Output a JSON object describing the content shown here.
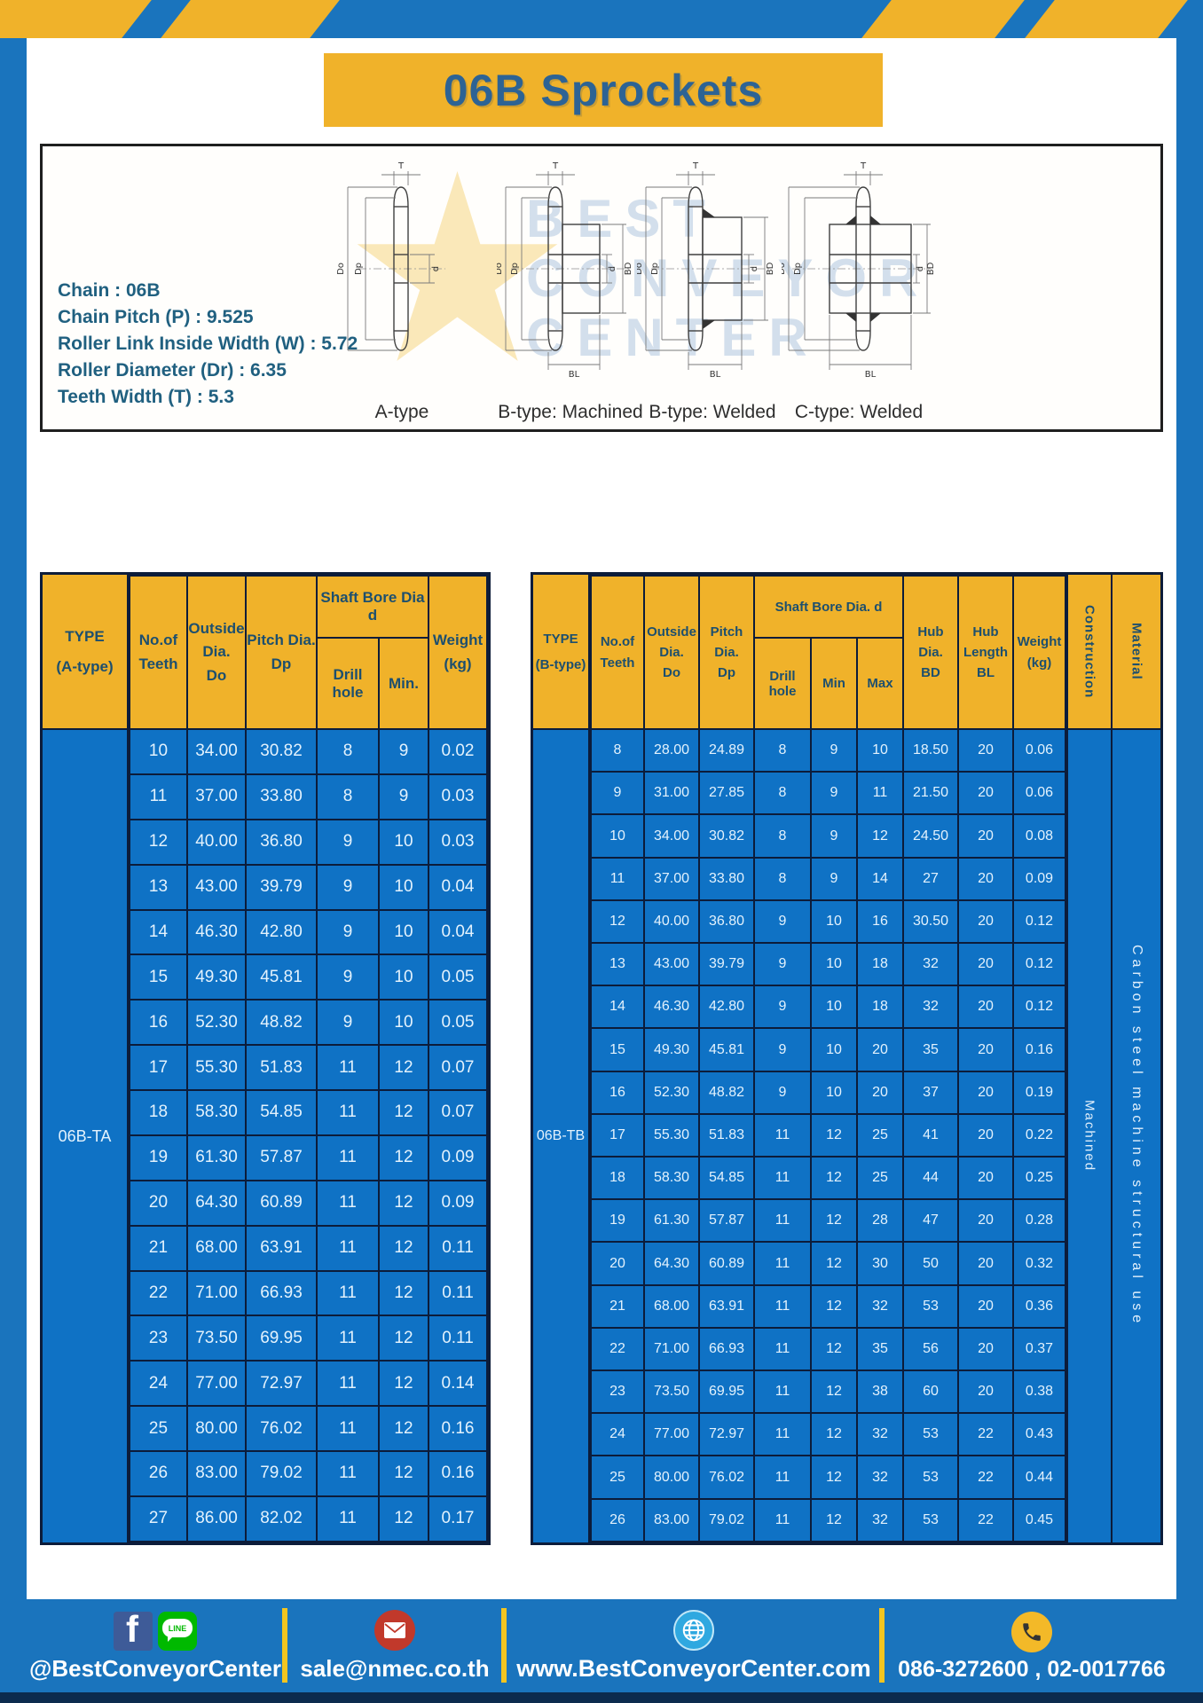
{
  "page": {
    "title": "06B Sprockets"
  },
  "specs": {
    "lines": [
      "Chain : 06B",
      "Chain Pitch (P) : 9.525",
      "Roller Link Inside Width (W) : 5.72",
      "Roller Diameter (Dr) : 6.35",
      "Teeth Width (T) : 5.3"
    ]
  },
  "diagram": {
    "watermark": "BEST CONVEYOR CENTER",
    "captions": [
      "A-type",
      "B-type: Machined",
      "B-type: Welded",
      "C-type: Welded"
    ],
    "dims": {
      "t": "T",
      "do": "Do",
      "dp": "Dp",
      "d": "d",
      "bd": "BD",
      "bl": "BL"
    }
  },
  "table_a": {
    "type_header": [
      "TYPE",
      "(A-type)"
    ],
    "col_teeth": [
      "No.of",
      "Teeth"
    ],
    "col_outside": [
      "Outside",
      "Dia.",
      "Do"
    ],
    "col_pitch": [
      "Pitch Dia.",
      "Dp"
    ],
    "group_shaft": "Shaft Bore Dia d",
    "col_drill": "Drill hole",
    "col_min": "Min.",
    "col_weight": [
      "Weight",
      "(kg)"
    ],
    "type_value": "06B-TA",
    "rows": [
      [
        "10",
        "34.00",
        "30.82",
        "8",
        "9",
        "0.02"
      ],
      [
        "11",
        "37.00",
        "33.80",
        "8",
        "9",
        "0.03"
      ],
      [
        "12",
        "40.00",
        "36.80",
        "9",
        "10",
        "0.03"
      ],
      [
        "13",
        "43.00",
        "39.79",
        "9",
        "10",
        "0.04"
      ],
      [
        "14",
        "46.30",
        "42.80",
        "9",
        "10",
        "0.04"
      ],
      [
        "15",
        "49.30",
        "45.81",
        "9",
        "10",
        "0.05"
      ],
      [
        "16",
        "52.30",
        "48.82",
        "9",
        "10",
        "0.05"
      ],
      [
        "17",
        "55.30",
        "51.83",
        "11",
        "12",
        "0.07"
      ],
      [
        "18",
        "58.30",
        "54.85",
        "11",
        "12",
        "0.07"
      ],
      [
        "19",
        "61.30",
        "57.87",
        "11",
        "12",
        "0.09"
      ],
      [
        "20",
        "64.30",
        "60.89",
        "11",
        "12",
        "0.09"
      ],
      [
        "21",
        "68.00",
        "63.91",
        "11",
        "12",
        "0.11"
      ],
      [
        "22",
        "71.00",
        "66.93",
        "11",
        "12",
        "0.11"
      ],
      [
        "23",
        "73.50",
        "69.95",
        "11",
        "12",
        "0.11"
      ],
      [
        "24",
        "77.00",
        "72.97",
        "11",
        "12",
        "0.14"
      ],
      [
        "25",
        "80.00",
        "76.02",
        "11",
        "12",
        "0.16"
      ],
      [
        "26",
        "83.00",
        "79.02",
        "11",
        "12",
        "0.16"
      ],
      [
        "27",
        "86.00",
        "82.02",
        "11",
        "12",
        "0.17"
      ]
    ]
  },
  "table_b": {
    "type_header": [
      "TYPE",
      "(B-type)"
    ],
    "col_teeth": [
      "No.of",
      "Teeth"
    ],
    "col_outside": [
      "Outside",
      "Dia.",
      "Do"
    ],
    "col_pitch": [
      "Pitch",
      "Dia.",
      "Dp"
    ],
    "group_shaft": "Shaft Bore Dia. d",
    "col_drill": "Drill hole",
    "col_min": "Min",
    "col_max": "Max",
    "col_hub_dia": [
      "Hub",
      "Dia.",
      "BD"
    ],
    "col_hub_len": [
      "Hub",
      "Length",
      "BL"
    ],
    "col_weight": [
      "Weight",
      "(kg)"
    ],
    "col_construction": "Construction",
    "col_material": "Material",
    "type_value": "06B-TB",
    "construction_value": "Machined",
    "material_value": "Carbon steel machine structural use",
    "rows": [
      [
        "8",
        "28.00",
        "24.89",
        "8",
        "9",
        "10",
        "18.50",
        "20",
        "0.06"
      ],
      [
        "9",
        "31.00",
        "27.85",
        "8",
        "9",
        "11",
        "21.50",
        "20",
        "0.06"
      ],
      [
        "10",
        "34.00",
        "30.82",
        "8",
        "9",
        "12",
        "24.50",
        "20",
        "0.08"
      ],
      [
        "11",
        "37.00",
        "33.80",
        "8",
        "9",
        "14",
        "27",
        "20",
        "0.09"
      ],
      [
        "12",
        "40.00",
        "36.80",
        "9",
        "10",
        "16",
        "30.50",
        "20",
        "0.12"
      ],
      [
        "13",
        "43.00",
        "39.79",
        "9",
        "10",
        "18",
        "32",
        "20",
        "0.12"
      ],
      [
        "14",
        "46.30",
        "42.80",
        "9",
        "10",
        "18",
        "32",
        "20",
        "0.12"
      ],
      [
        "15",
        "49.30",
        "45.81",
        "9",
        "10",
        "20",
        "35",
        "20",
        "0.16"
      ],
      [
        "16",
        "52.30",
        "48.82",
        "9",
        "10",
        "20",
        "37",
        "20",
        "0.19"
      ],
      [
        "17",
        "55.30",
        "51.83",
        "11",
        "12",
        "25",
        "41",
        "20",
        "0.22"
      ],
      [
        "18",
        "58.30",
        "54.85",
        "11",
        "12",
        "25",
        "44",
        "20",
        "0.25"
      ],
      [
        "19",
        "61.30",
        "57.87",
        "11",
        "12",
        "28",
        "47",
        "20",
        "0.28"
      ],
      [
        "20",
        "64.30",
        "60.89",
        "11",
        "12",
        "30",
        "50",
        "20",
        "0.32"
      ],
      [
        "21",
        "68.00",
        "63.91",
        "11",
        "12",
        "32",
        "53",
        "20",
        "0.36"
      ],
      [
        "22",
        "71.00",
        "66.93",
        "11",
        "12",
        "35",
        "56",
        "20",
        "0.37"
      ],
      [
        "23",
        "73.50",
        "69.95",
        "11",
        "12",
        "38",
        "60",
        "20",
        "0.38"
      ],
      [
        "24",
        "77.00",
        "72.97",
        "11",
        "12",
        "32",
        "53",
        "22",
        "0.43"
      ],
      [
        "25",
        "80.00",
        "76.02",
        "11",
        "12",
        "32",
        "53",
        "22",
        "0.44"
      ],
      [
        "26",
        "83.00",
        "79.02",
        "11",
        "12",
        "32",
        "53",
        "22",
        "0.45"
      ]
    ]
  },
  "footer": {
    "facebook_letter": "f",
    "line_label": "LINE",
    "social": "@BestConveyorCenter",
    "email": "sale@nmec.co.th",
    "website": "www.BestConveyorCenter.com",
    "phone": "086-3272600 , 02-0017766"
  }
}
